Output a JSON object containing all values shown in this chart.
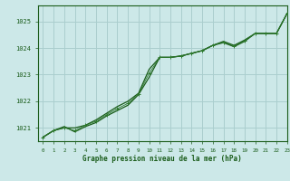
{
  "title": "Graphe pression niveau de la mer (hPa)",
  "bg_color": "#cce8e8",
  "grid_color": "#aacece",
  "line_color_dark": "#1a5c1a",
  "line_color_mid": "#2d7a2d",
  "xlabel_color": "#1a5c1a",
  "xlim": [
    -0.5,
    23
  ],
  "ylim": [
    1020.5,
    1025.6
  ],
  "yticks": [
    1021,
    1022,
    1023,
    1024,
    1025
  ],
  "xticks": [
    0,
    1,
    2,
    3,
    4,
    5,
    6,
    7,
    8,
    9,
    10,
    11,
    12,
    13,
    14,
    15,
    16,
    17,
    18,
    19,
    20,
    21,
    22,
    23
  ],
  "series1_x": [
    0,
    1,
    2,
    3,
    4,
    5,
    6,
    7,
    8,
    9,
    10,
    11,
    12,
    13,
    14,
    15,
    16,
    17,
    18,
    19,
    20,
    21,
    22,
    23
  ],
  "series1_y": [
    1020.65,
    1020.9,
    1021.0,
    1021.0,
    1021.1,
    1021.3,
    1021.55,
    1021.8,
    1022.0,
    1022.3,
    1023.2,
    1023.65,
    1023.65,
    1023.7,
    1023.8,
    1023.9,
    1024.1,
    1024.2,
    1024.05,
    1024.25,
    1024.55,
    1024.55,
    1024.55,
    1025.3
  ],
  "series2_x": [
    0,
    1,
    2,
    3,
    4,
    5,
    6,
    7,
    8,
    9,
    10,
    11,
    12,
    13,
    14,
    15,
    16,
    17,
    18,
    19,
    20,
    21,
    22,
    23
  ],
  "series2_y": [
    1020.65,
    1020.9,
    1021.05,
    1020.85,
    1021.05,
    1021.2,
    1021.45,
    1021.65,
    1021.85,
    1022.25,
    1022.9,
    1023.65,
    1023.65,
    1023.7,
    1023.8,
    1023.9,
    1024.1,
    1024.25,
    1024.1,
    1024.3,
    1024.55,
    1024.55,
    1024.55,
    1025.3
  ],
  "series3_x": [
    0,
    1,
    2,
    3,
    4,
    5,
    6,
    7,
    8,
    9,
    10,
    11,
    12,
    13,
    14,
    15,
    16,
    17,
    18,
    19,
    20,
    21,
    22,
    23
  ],
  "series3_y": [
    1020.65,
    1020.9,
    1021.0,
    1020.9,
    1021.1,
    1021.25,
    1021.5,
    1021.72,
    1021.92,
    1022.27,
    1023.05,
    1023.65,
    1023.65,
    1023.7,
    1023.8,
    1023.9,
    1024.1,
    1024.22,
    1024.07,
    1024.27,
    1024.55,
    1024.55,
    1024.55,
    1025.3
  ]
}
